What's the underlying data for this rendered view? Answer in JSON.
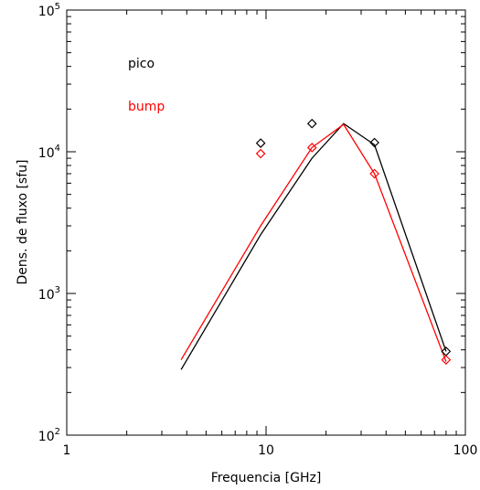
{
  "chart_data": {
    "type": "line",
    "x_scale": "log",
    "y_scale": "log",
    "xlim": [
      1,
      100
    ],
    "ylim": [
      100,
      100000
    ],
    "xlabel": "Frequencia [GHz]",
    "ylabel": "Dens. de fluxo [sfu]",
    "x_ticks": [
      {
        "value": 1,
        "label": "1"
      },
      {
        "value": 10,
        "label": "10"
      },
      {
        "value": 100,
        "label": "100"
      }
    ],
    "y_ticks": [
      {
        "value": 100,
        "base": "10",
        "exp": "2"
      },
      {
        "value": 1000,
        "base": "10",
        "exp": "3"
      },
      {
        "value": 10000,
        "base": "10",
        "exp": "4"
      },
      {
        "value": 100000,
        "base": "10",
        "exp": "5"
      }
    ],
    "legend_placement": "top-left",
    "series": [
      {
        "name": "pico",
        "color": "#000000",
        "line": {
          "x": [
            3.75,
            9.4,
            17,
            24.5,
            35,
            80
          ],
          "y": [
            290,
            2600,
            9000,
            15800,
            11200,
            390
          ]
        },
        "points": {
          "marker": "diamond",
          "x": [
            9.4,
            17,
            35,
            80
          ],
          "y": [
            11500,
            15800,
            11600,
            390
          ]
        }
      },
      {
        "name": "bump",
        "color": "#ff0000",
        "line": {
          "x": [
            3.75,
            9.4,
            17,
            24.5,
            35,
            80
          ],
          "y": [
            340,
            3000,
            10700,
            15600,
            7000,
            330
          ]
        },
        "points": {
          "marker": "diamond",
          "x": [
            9.4,
            17,
            35,
            80
          ],
          "y": [
            9700,
            10700,
            7000,
            340
          ]
        }
      }
    ]
  }
}
